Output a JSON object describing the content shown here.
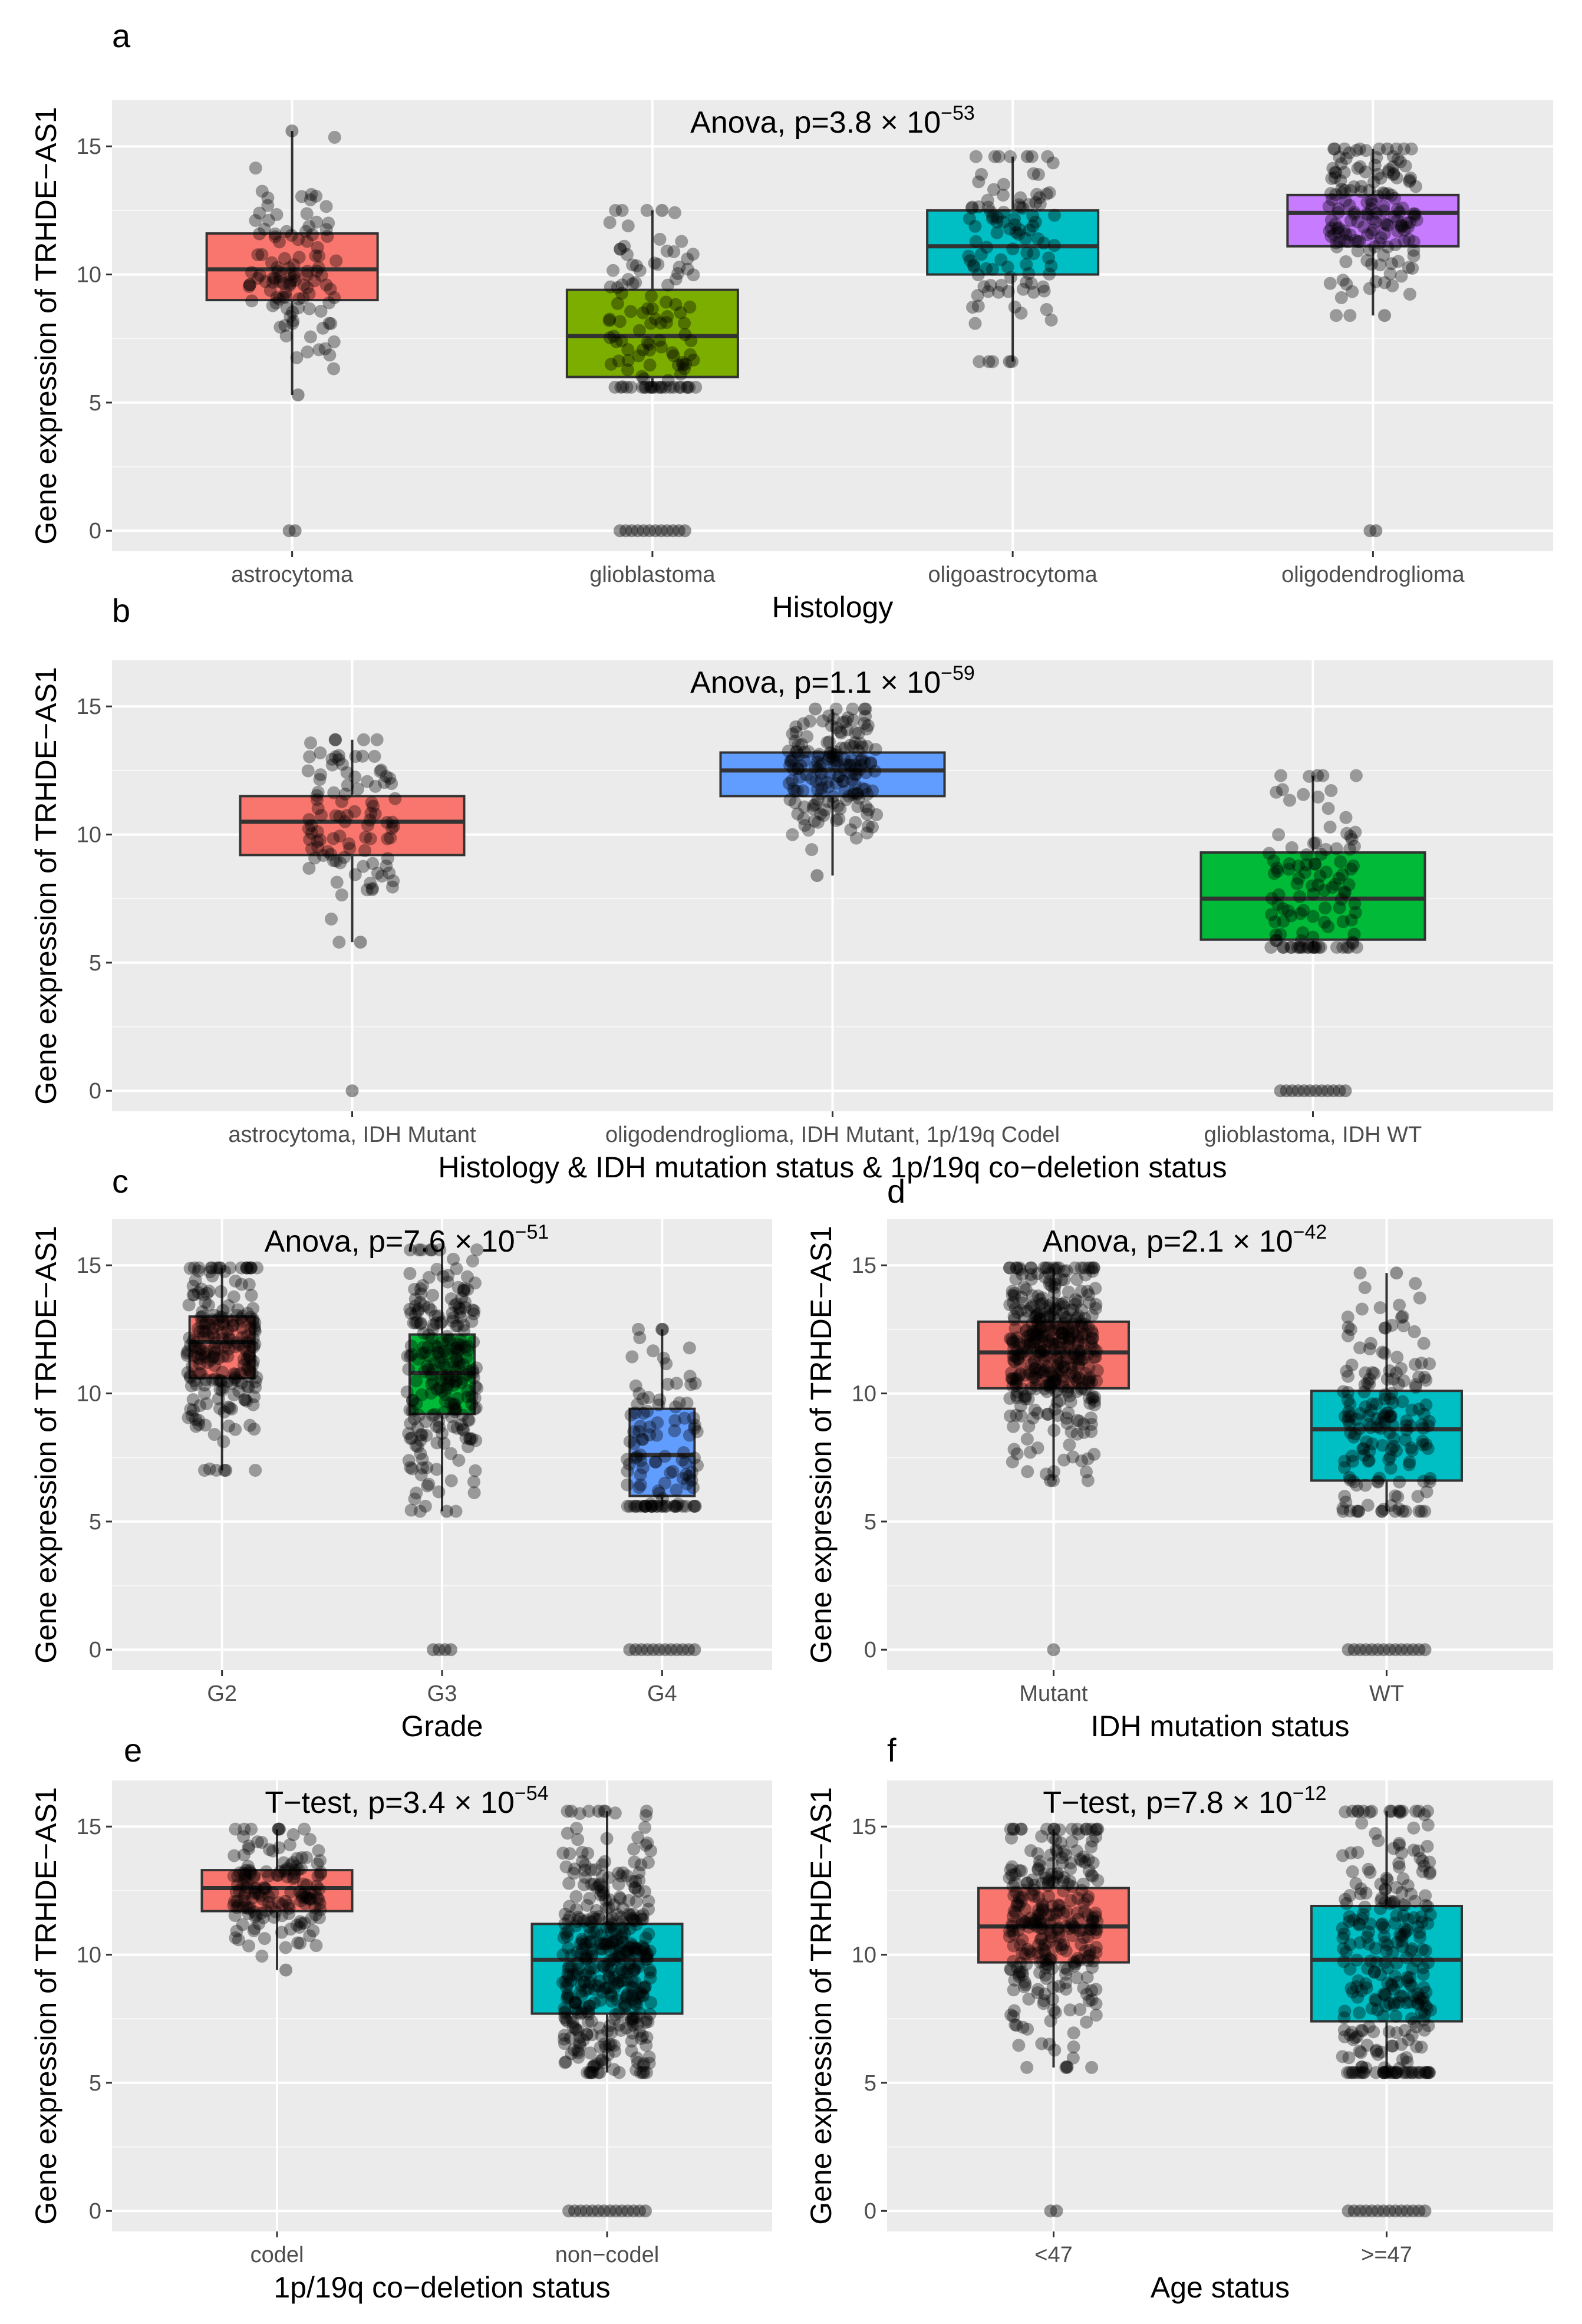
{
  "figure": {
    "colors": {
      "red": "#F8766D",
      "olive": "#7CAE00",
      "teal": "#00BFC4",
      "purple": "#C77CFF",
      "blue": "#619CFF",
      "green": "#00BA38",
      "panel_bg": "#EBEBEB",
      "grid": "#FFFFFF",
      "box_line": "#333333",
      "point": "#000000"
    }
  },
  "chart_data": [
    {
      "panel": "a",
      "type": "box",
      "title": "",
      "annotation": {
        "prefix": "Anova, p=3.8 × 10",
        "exponent": "−53"
      },
      "ylabel": "Gene expression of TRHDE−AS1",
      "xlabel": "Histology",
      "ylim": [
        -0.8,
        16.8
      ],
      "yticks": [
        0,
        5,
        10,
        15
      ],
      "categories": [
        "astrocytoma",
        "glioblastoma",
        "oligoastrocytoma",
        "oligodendroglioma"
      ],
      "colors": [
        "#F8766D",
        "#7CAE00",
        "#00BFC4",
        "#C77CFF"
      ],
      "boxes": [
        {
          "q1": 9.0,
          "median": 10.2,
          "q3": 11.6,
          "lo": 5.3,
          "hi": 15.6,
          "n": 110,
          "zeros": 2
        },
        {
          "q1": 6.0,
          "median": 7.6,
          "q3": 9.4,
          "lo": 5.6,
          "hi": 12.5,
          "n": 110,
          "zeros": 12
        },
        {
          "q1": 10.0,
          "median": 11.1,
          "q3": 12.5,
          "lo": 6.6,
          "hi": 14.6,
          "n": 100,
          "zeros": 0
        },
        {
          "q1": 11.1,
          "median": 12.4,
          "q3": 13.1,
          "lo": 8.4,
          "hi": 14.9,
          "n": 160,
          "zeros": 2
        }
      ]
    },
    {
      "panel": "b",
      "type": "box",
      "annotation": {
        "prefix": "Anova, p=1.1 × 10",
        "exponent": "−59"
      },
      "ylabel": "Gene expression of TRHDE−AS1",
      "xlabel": "Histology & IDH mutation status & 1p/19q co−deletion status",
      "ylim": [
        -0.8,
        16.8
      ],
      "yticks": [
        0,
        5,
        10,
        15
      ],
      "categories": [
        "astrocytoma, IDH Mutant",
        "oligodendroglioma, IDH Mutant, 1p/19q Codel",
        "glioblastoma, IDH WT"
      ],
      "colors": [
        "#F8766D",
        "#619CFF",
        "#00BA38"
      ],
      "boxes": [
        {
          "q1": 9.2,
          "median": 10.5,
          "q3": 11.5,
          "lo": 5.8,
          "hi": 13.7,
          "n": 100,
          "zeros": 1
        },
        {
          "q1": 11.5,
          "median": 12.5,
          "q3": 13.2,
          "lo": 8.4,
          "hi": 14.9,
          "n": 170,
          "zeros": 0
        },
        {
          "q1": 5.9,
          "median": 7.5,
          "q3": 9.3,
          "lo": 5.6,
          "hi": 12.3,
          "n": 110,
          "zeros": 12
        }
      ]
    },
    {
      "panel": "c",
      "type": "box",
      "annotation": {
        "prefix": "Anova, p=7.6 × 10",
        "exponent": "−51"
      },
      "ylabel": "Gene expression of TRHDE−AS1",
      "xlabel": "Grade",
      "ylim": [
        -0.8,
        16.8
      ],
      "yticks": [
        0,
        5,
        10,
        15
      ],
      "categories": [
        "G2",
        "G3",
        "G4"
      ],
      "colors": [
        "#F8766D",
        "#00BA38",
        "#619CFF"
      ],
      "boxes": [
        {
          "q1": 10.6,
          "median": 12.0,
          "q3": 13.0,
          "lo": 7.0,
          "hi": 14.9,
          "n": 220,
          "zeros": 0
        },
        {
          "q1": 9.2,
          "median": 10.8,
          "q3": 12.3,
          "lo": 5.4,
          "hi": 15.6,
          "n": 240,
          "zeros": 4
        },
        {
          "q1": 6.0,
          "median": 7.6,
          "q3": 9.4,
          "lo": 5.6,
          "hi": 12.5,
          "n": 110,
          "zeros": 12
        }
      ]
    },
    {
      "panel": "d",
      "type": "box",
      "annotation": {
        "prefix": "Anova, p=2.1 × 10",
        "exponent": "−42"
      },
      "ylabel": "Gene expression of TRHDE−AS1",
      "xlabel": "IDH mutation status",
      "ylim": [
        -0.8,
        16.8
      ],
      "yticks": [
        0,
        5,
        10,
        15
      ],
      "categories": [
        "Mutant",
        "WT"
      ],
      "colors": [
        "#F8766D",
        "#00BFC4"
      ],
      "boxes": [
        {
          "q1": 10.2,
          "median": 11.6,
          "q3": 12.8,
          "lo": 6.6,
          "hi": 14.9,
          "n": 400,
          "zeros": 1
        },
        {
          "q1": 6.6,
          "median": 8.6,
          "q3": 10.1,
          "lo": 5.4,
          "hi": 14.7,
          "n": 170,
          "zeros": 14
        }
      ]
    },
    {
      "panel": "e",
      "type": "box",
      "annotation": {
        "prefix": "T−test, p=3.4 × 10",
        "exponent": "−54"
      },
      "ylabel": "Gene expression of TRHDE−AS1",
      "xlabel": "1p/19q co−deletion status",
      "ylim": [
        -0.8,
        16.8
      ],
      "yticks": [
        0,
        5,
        10,
        15
      ],
      "categories": [
        "codel",
        "non−codel"
      ],
      "colors": [
        "#F8766D",
        "#00BFC4"
      ],
      "boxes": [
        {
          "q1": 11.7,
          "median": 12.6,
          "q3": 13.3,
          "lo": 9.4,
          "hi": 14.9,
          "n": 160,
          "zeros": 0
        },
        {
          "q1": 7.7,
          "median": 9.8,
          "q3": 11.2,
          "lo": 5.4,
          "hi": 15.6,
          "n": 420,
          "zeros": 14
        }
      ]
    },
    {
      "panel": "f",
      "type": "box",
      "annotation": {
        "prefix": "T−test, p=7.8 × 10",
        "exponent": "−12"
      },
      "ylabel": "Gene expression of TRHDE−AS1",
      "xlabel": "Age status",
      "ylim": [
        -0.8,
        16.8
      ],
      "yticks": [
        0,
        5,
        10,
        15
      ],
      "categories": [
        "<47",
        ">=47"
      ],
      "colors": [
        "#F8766D",
        "#00BFC4"
      ],
      "boxes": [
        {
          "q1": 9.7,
          "median": 11.1,
          "q3": 12.6,
          "lo": 5.6,
          "hi": 14.9,
          "n": 300,
          "zeros": 2
        },
        {
          "q1": 7.4,
          "median": 9.8,
          "q3": 11.9,
          "lo": 5.4,
          "hi": 15.6,
          "n": 280,
          "zeros": 14
        }
      ]
    }
  ]
}
